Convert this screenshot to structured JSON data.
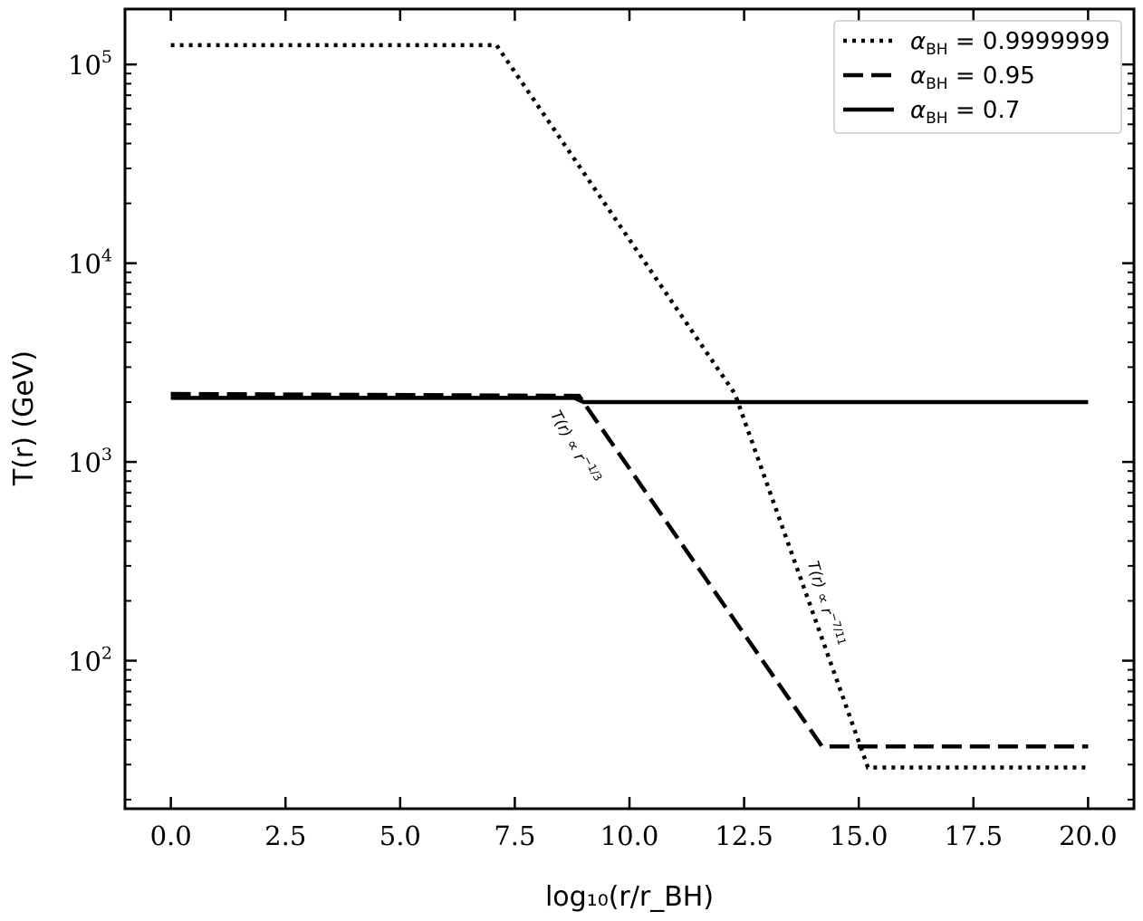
{
  "chart_data": {
    "type": "line",
    "title": "",
    "xlabel": "log₁₀(r/r_BH)",
    "ylabel": "T(r) (GeV)",
    "xlim": [
      -1.0,
      21.0
    ],
    "ylim": [
      18,
      190000
    ],
    "yscale": "log",
    "x_ticks": [
      0.0,
      2.5,
      5.0,
      7.5,
      10.0,
      12.5,
      15.0,
      17.5,
      20.0
    ],
    "x_tick_labels": [
      "0.0",
      "2.5",
      "5.0",
      "7.5",
      "10.0",
      "12.5",
      "15.0",
      "17.5",
      "20.0"
    ],
    "y_ticks": [
      100,
      1000,
      10000,
      100000
    ],
    "y_tick_labels": [
      {
        "base": "10",
        "exp": "2"
      },
      {
        "base": "10",
        "exp": "3"
      },
      {
        "base": "10",
        "exp": "4"
      },
      {
        "base": "10",
        "exp": "5"
      }
    ],
    "grid": false,
    "legend_position": "top-right",
    "series": [
      {
        "label_main": "α",
        "label_sub": "BH",
        "label_value": " = 0.9999999",
        "style": "dotted",
        "points": [
          [
            0.0,
            125000
          ],
          [
            7.1,
            125000
          ],
          [
            12.3,
            2200
          ],
          [
            15.2,
            29
          ],
          [
            20.0,
            29
          ]
        ]
      },
      {
        "label_main": "α",
        "label_sub": "BH",
        "label_value": " = 0.95",
        "style": "dashed",
        "points": [
          [
            0.0,
            2200
          ],
          [
            8.9,
            2150
          ],
          [
            14.2,
            37
          ],
          [
            20.0,
            37
          ]
        ]
      },
      {
        "label_main": "α",
        "label_sub": "BH",
        "label_value": " = 0.7",
        "style": "solid",
        "points": [
          [
            0.0,
            2100
          ],
          [
            8.8,
            2100
          ],
          [
            9.0,
            2000
          ],
          [
            20.0,
            2000
          ]
        ]
      }
    ],
    "annotations": [
      {
        "text_main": "T(r) ∝ r",
        "text_exp": "−1/3",
        "x": 8.7,
        "y": 1150,
        "angle": 61
      },
      {
        "text_main": "T(r) ∝ r",
        "text_exp": "−7/11",
        "x": 14.15,
        "y": 190,
        "angle": 74
      }
    ]
  }
}
